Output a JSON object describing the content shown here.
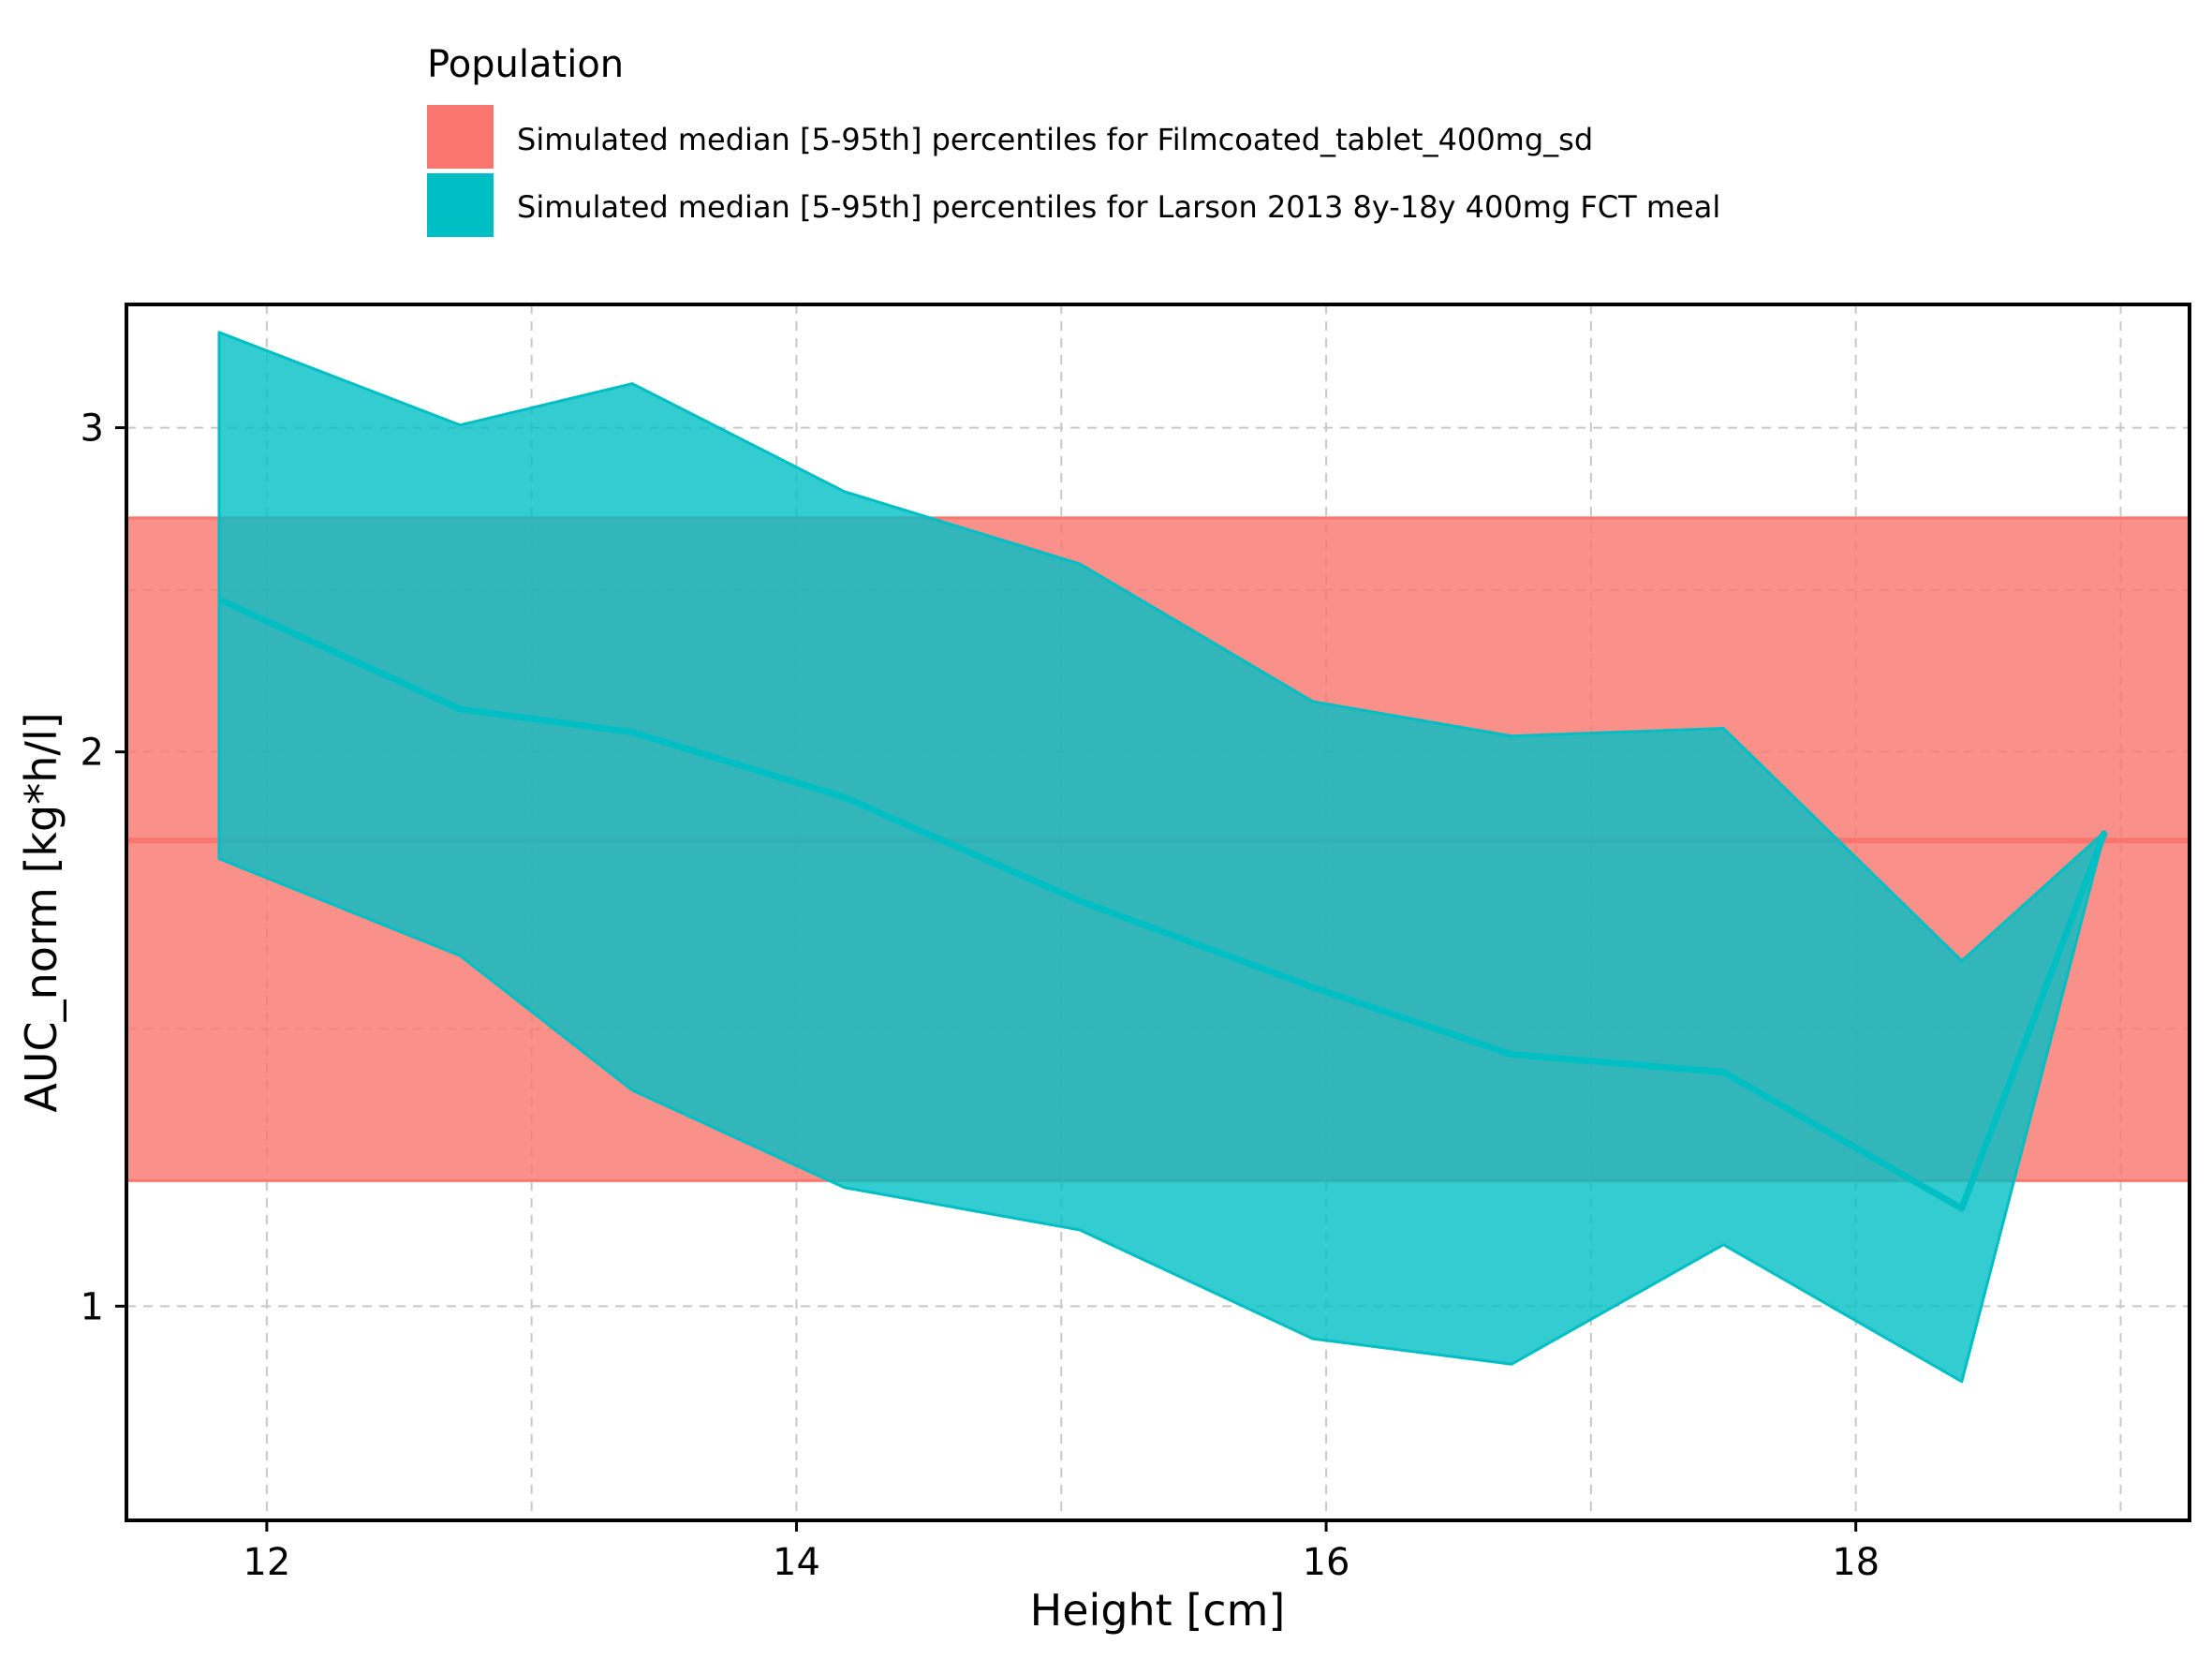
{
  "chart_data": {
    "type": "area",
    "xlabel": "Height [cm]",
    "ylabel": "AUC_norm [kg*h/l]",
    "xlim": [
      11.47,
      19.26
    ],
    "ylim": [
      0.765,
      3.5
    ],
    "y_scale": "log",
    "x_ticks": [
      "12",
      "14",
      "16",
      "18"
    ],
    "x_tick_values": [
      12,
      14,
      16,
      18
    ],
    "y_ticks": [
      "1",
      "2",
      "3"
    ],
    "y_tick_values": [
      1,
      2,
      3
    ],
    "grid": true,
    "legend": {
      "title": "Population",
      "position": "top",
      "entries": [
        "Simulated median [5-95th] percentiles for Filmcoated_tablet_400mg_sd",
        "Simulated median [5-95th] percentiles for Larson 2013 8y-18y 400mg FCT meal"
      ]
    },
    "colors": {
      "reference_fill": "#F8766D",
      "reference_line": "#F8766D",
      "population_fill": "#00BFC4",
      "population_line": "#00BFC4",
      "grid": "#c8c8c8"
    },
    "reference": {
      "name": "Simulated median [5-95th] percentiles for Filmcoated_tablet_400mg_sd",
      "median": 1.79,
      "p5": 1.17,
      "p95": 2.68
    },
    "series": [
      {
        "name": "Simulated median [5-95th] percentiles for Larson 2013 8y-18y 400mg FCT meal",
        "x": [
          11.82,
          12.73,
          13.38,
          14.18,
          15.07,
          15.95,
          16.7,
          17.5,
          18.4,
          18.94
        ],
        "median": [
          2.42,
          2.11,
          2.05,
          1.89,
          1.66,
          1.49,
          1.37,
          1.34,
          1.13,
          1.81
        ],
        "p5": [
          1.75,
          1.55,
          1.31,
          1.16,
          1.1,
          0.96,
          0.93,
          1.08,
          0.91,
          1.81
        ],
        "p95": [
          3.38,
          3.01,
          3.17,
          2.77,
          2.53,
          2.13,
          2.04,
          2.06,
          1.54,
          1.81
        ]
      }
    ]
  }
}
